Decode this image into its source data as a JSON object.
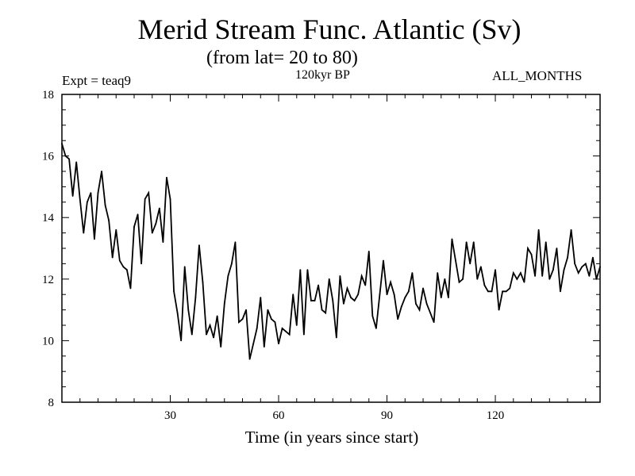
{
  "chart_data": {
    "type": "line",
    "title": "Merid Stream Func. Atlantic (Sv)",
    "subtitle": "(from lat= 20 to 80)",
    "experiment_label": "Expt = teaq9",
    "period_label": "120kyr BP",
    "months_label": "ALL_MONTHS",
    "xlabel": "Time (in years since start)",
    "ylabel": "",
    "xlim": [
      0,
      149
    ],
    "ylim": [
      8,
      18
    ],
    "xticks": [
      30,
      60,
      90,
      120
    ],
    "yticks": [
      8,
      10,
      12,
      14,
      16,
      18
    ],
    "x_minor_step": 5,
    "y_minor_step": 0.5,
    "series": [
      {
        "name": "Merid Stream Func. Atlantic",
        "x_start": 0,
        "x_step": 1,
        "values": [
          16.4,
          16.0,
          15.9,
          14.7,
          15.8,
          14.6,
          13.5,
          14.5,
          14.8,
          13.3,
          14.8,
          15.5,
          14.4,
          13.9,
          12.7,
          13.6,
          12.6,
          12.4,
          12.3,
          11.7,
          13.7,
          14.1,
          12.5,
          14.6,
          14.8,
          13.5,
          13.8,
          14.3,
          13.2,
          15.3,
          14.6,
          11.6,
          10.9,
          10.0,
          12.4,
          11.0,
          10.2,
          11.4,
          13.1,
          11.9,
          10.2,
          10.5,
          10.1,
          10.8,
          9.8,
          11.2,
          12.1,
          12.5,
          13.2,
          10.6,
          10.7,
          11.0,
          9.4,
          9.9,
          10.4,
          11.4,
          9.8,
          11.0,
          10.7,
          10.6,
          9.9,
          10.4,
          10.3,
          10.2,
          11.5,
          10.5,
          12.3,
          10.2,
          12.3,
          11.3,
          11.3,
          11.8,
          11.0,
          10.9,
          12.0,
          11.3,
          10.1,
          12.1,
          11.2,
          11.7,
          11.4,
          11.3,
          11.5,
          12.1,
          11.8,
          12.9,
          10.8,
          10.4,
          11.5,
          12.6,
          11.5,
          11.9,
          11.5,
          10.7,
          11.1,
          11.4,
          11.6,
          12.2,
          11.2,
          11.0,
          11.7,
          11.2,
          10.9,
          10.6,
          12.2,
          11.4,
          12.0,
          11.4,
          13.3,
          12.6,
          11.9,
          12.0,
          13.2,
          12.5,
          13.2,
          12.0,
          12.4,
          11.8,
          11.6,
          11.6,
          12.3,
          11.0,
          11.6,
          11.6,
          11.7,
          12.2,
          12.0,
          12.2,
          11.9,
          13.0,
          12.8,
          12.1,
          13.6,
          12.1,
          13.2,
          12.0,
          12.3,
          13.0,
          11.6,
          12.3,
          12.7,
          13.6,
          12.5,
          12.2,
          12.4,
          12.5,
          12.1,
          12.7,
          12.0,
          12.4
        ]
      }
    ]
  }
}
